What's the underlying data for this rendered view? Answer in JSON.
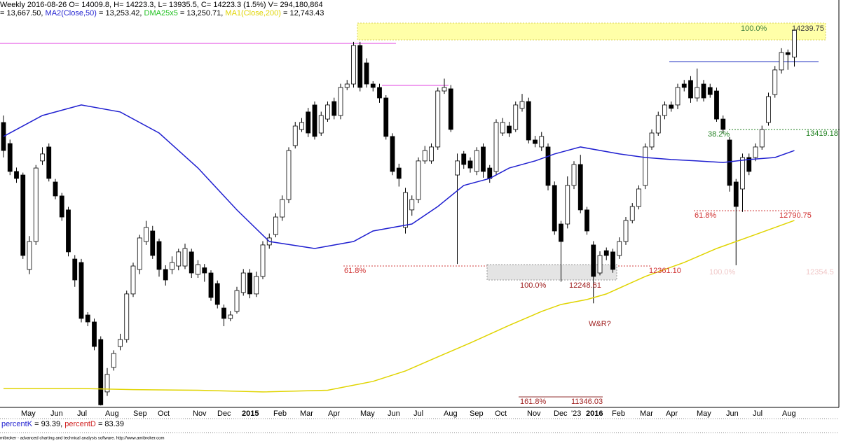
{
  "chart_data": {
    "type": "candlestick",
    "header": {
      "line1": "Weekly 2016-08-26 O= 14009.8, H= 14223.3, L= 13935.5, C= 14223.3 (1.5%) V= 294,180,864",
      "lead_value": "= 13,667.50,",
      "ma2_name": "MA2(Close,50)",
      "ma2_value": "= 13,253.42,",
      "dma_name": "DMA25x5",
      "dma_value": "= 13,250.71,",
      "ma1_name": "MA1(Close,200)",
      "ma1_value": "= 12,743.43"
    },
    "ylim": [
      11261,
      14460
    ],
    "candles": {
      "up_color": "#ffffff",
      "down_color": "#000000",
      "open": [
        13495,
        13329,
        13109,
        13081,
        12337,
        12557,
        13192,
        13302,
        13026,
        12916,
        12806,
        12419,
        12392,
        11978,
        11923,
        11785,
        11372,
        11565,
        11730,
        11785,
        12144,
        12337,
        12557,
        12640,
        12557,
        12337,
        12337,
        12364,
        12364,
        12475,
        12298,
        12350,
        12309,
        12226,
        12033,
        11951,
        12006,
        12155,
        12309,
        12144,
        12282,
        12530,
        12612,
        12750,
        12888,
        13313,
        13440,
        13578,
        13633,
        13412,
        13522,
        13660,
        13550,
        13771,
        13798,
        14102,
        13964,
        13798,
        13771,
        13688,
        13385,
        13136,
        12668,
        12806,
        12888,
        13192,
        13192,
        13302,
        13743,
        13760,
        13081,
        13247,
        13192,
        13109,
        13302,
        13136,
        13109,
        13412,
        13467,
        13440,
        13606,
        13660,
        13357,
        13302,
        13302,
        12999,
        12695,
        12695,
        12999,
        13164,
        12806,
        12530,
        12309,
        12485,
        12475,
        12447,
        12557,
        12723,
        12833,
        12999,
        13302,
        13412,
        13550,
        13633,
        13633,
        13798,
        13826,
        13688,
        13798,
        13771,
        13743,
        13522,
        13357,
        13026,
        12971,
        13219,
        13219,
        13302,
        13495,
        13715,
        13909,
        14046,
        14009.8
      ],
      "high": [
        13550,
        13360,
        13140,
        13100,
        12600,
        13160,
        13300,
        13330,
        13050,
        12940,
        12830,
        12450,
        12420,
        12000,
        11950,
        11810,
        11560,
        11700,
        11830,
        12170,
        12390,
        12610,
        12720,
        12680,
        12580,
        12370,
        12440,
        12500,
        12540,
        12500,
        12410,
        12380,
        12330,
        12250,
        12060,
        12010,
        12200,
        12340,
        12340,
        12320,
        12560,
        12620,
        12780,
        12920,
        13300,
        13500,
        13530,
        13610,
        13660,
        13580,
        13660,
        13690,
        13800,
        13830,
        14130,
        14130,
        14000,
        13820,
        13800,
        13710,
        13410,
        13170,
        12980,
        12920,
        13220,
        13310,
        13330,
        13770,
        13840,
        13790,
        13250,
        13270,
        13220,
        13300,
        13330,
        13160,
        13520,
        13530,
        13500,
        13660,
        13720,
        13690,
        13390,
        13420,
        13330,
        13030,
        12720,
        13070,
        13190,
        13240,
        12830,
        12560,
        12480,
        12510,
        12500,
        12590,
        12750,
        12860,
        13000,
        13330,
        13440,
        13580,
        13660,
        13660,
        13800,
        13830,
        13860,
        13920,
        13830,
        13800,
        13770,
        13550,
        13380,
        13050,
        13250,
        13250,
        13330,
        13470,
        13730,
        13940,
        14080,
        14070,
        14223.3
      ],
      "low": [
        13220,
        13080,
        13020,
        12420,
        12300,
        12530,
        13160,
        13030,
        12890,
        12720,
        12440,
        12200,
        11920,
        11890,
        11700,
        11265,
        11340,
        11540,
        11700,
        11760,
        12120,
        12300,
        12530,
        12420,
        12280,
        12210,
        12300,
        12330,
        12340,
        12270,
        12270,
        12240,
        12090,
        12030,
        11890,
        11930,
        11990,
        12130,
        12110,
        12120,
        12260,
        12500,
        12590,
        12720,
        12860,
        13290,
        13420,
        13380,
        13360,
        13390,
        13500,
        13520,
        13520,
        13750,
        13770,
        13740,
        13770,
        13740,
        13650,
        13360,
        13080,
        12990,
        12620,
        12760,
        12860,
        13170,
        13170,
        13280,
        13720,
        13420,
        12380,
        13130,
        13100,
        13080,
        13060,
        13020,
        13080,
        13390,
        13380,
        13420,
        13580,
        13330,
        13300,
        13270,
        12960,
        12610,
        12240,
        12660,
        12970,
        12780,
        12610,
        12070,
        12290,
        12410,
        12310,
        12420,
        12530,
        12700,
        12810,
        12970,
        13280,
        13390,
        13520,
        13580,
        13600,
        13740,
        13650,
        13660,
        13660,
        13690,
        13500,
        13410,
        12950,
        12370,
        12790,
        13080,
        13190,
        13280,
        13470,
        13690,
        13880,
        13910,
        13935.5
      ],
      "close": [
        13274,
        13109,
        13054,
        12447,
        12557,
        13136,
        13247,
        13054,
        12916,
        12750,
        12475,
        12254,
        11951,
        11923,
        11730,
        11270,
        11510,
        11675,
        11785,
        12144,
        12364,
        12585,
        12668,
        12447,
        12337,
        12254,
        12392,
        12475,
        12502,
        12309,
        12375,
        12309,
        12116,
        12061,
        11951,
        11978,
        12171,
        12309,
        12144,
        12282,
        12530,
        12585,
        12750,
        12888,
        13274,
        13467,
        13495,
        13412,
        13385,
        13550,
        13633,
        13550,
        13771,
        13798,
        14102,
        13771,
        13798,
        13771,
        13688,
        13385,
        13109,
        13054,
        12943,
        12888,
        13192,
        13274,
        13302,
        13743,
        13771,
        13440,
        13192,
        13164,
        13136,
        13274,
        13109,
        13054,
        13495,
        13495,
        13412,
        13633,
        13660,
        13357,
        13329,
        13385,
        12999,
        12640,
        12557,
        12999,
        13164,
        12806,
        12640,
        12282,
        12447,
        12447,
        12337,
        12557,
        12723,
        12833,
        12971,
        13302,
        13412,
        13550,
        13633,
        13606,
        13771,
        13771,
        13688,
        13771,
        13688,
        13715,
        13522,
        13440,
        12999,
        12833,
        13219,
        13109,
        13302,
        13440,
        13699,
        13909,
        14046,
        14030,
        14223.3
      ]
    },
    "lines": [
      {
        "color": "#1f1fd0",
        "x": [
          0,
          6,
          12,
          18,
          24,
          30,
          36,
          41,
          48,
          54,
          57,
          63,
          67,
          71,
          75,
          78,
          82,
          85,
          89,
          95,
          99,
          103,
          107,
          111,
          115,
          119,
          122
        ],
        "values": [
          13385,
          13550,
          13633,
          13578,
          13412,
          13136,
          12806,
          12557,
          12502,
          12557,
          12640,
          12695,
          12833,
          12999,
          13054,
          13136,
          13192,
          13247,
          13302,
          13247,
          13219,
          13203,
          13192,
          13180,
          13203,
          13219,
          13274
        ]
      },
      {
        "color": "#e0d400",
        "x": [
          0,
          12,
          20,
          30,
          40,
          50,
          57,
          62,
          67,
          72,
          78,
          83,
          86,
          90,
          93,
          99,
          105,
          110,
          116,
          122
        ],
        "values": [
          11399,
          11399,
          11390,
          11385,
          11372,
          11385,
          11455,
          11537,
          11648,
          11758,
          11896,
          12006,
          12061,
          12100,
          12144,
          12282,
          12392,
          12502,
          12612,
          12723
        ]
      }
    ],
    "x_labels": [
      "May",
      "Jun",
      "Jul",
      "Aug",
      "Sep",
      "Oct",
      "Nov",
      "Dec",
      "2015",
      "Feb",
      "Mar",
      "Apr",
      "May",
      "Jun",
      "Jul",
      "Aug",
      "Sep",
      "Oct",
      "Nov",
      "Dec",
      "'23",
      "2016",
      "Feb",
      "Mar",
      "Apr",
      "May",
      "Jun",
      "Jul",
      "Aug"
    ],
    "annotations": {
      "top_pct": "100.0%",
      "top_level": "14239.75",
      "fib382_pct": "38.2%",
      "fib382_level": "13419.18",
      "fib618_pct": "61.8%",
      "fib618_level": "12790.75",
      "low618_pct": "61.8%",
      "low618_level": "12361.10",
      "faded_pct": "100.0%",
      "faded_level": "12354.5",
      "low100_pct": "100.0%",
      "low100_level": "12248.61",
      "wr": "W&R?",
      "ext_pct": "161.8%",
      "ext_level": "11346.03"
    },
    "stoch": {
      "k_name": "percentK",
      "k_value": "= 93.39,",
      "d_name": "percentD",
      "d_value": "= 83.39"
    },
    "footer": "mibroker - advanced charting and technical analysis software. http://www.amibroker.com"
  }
}
